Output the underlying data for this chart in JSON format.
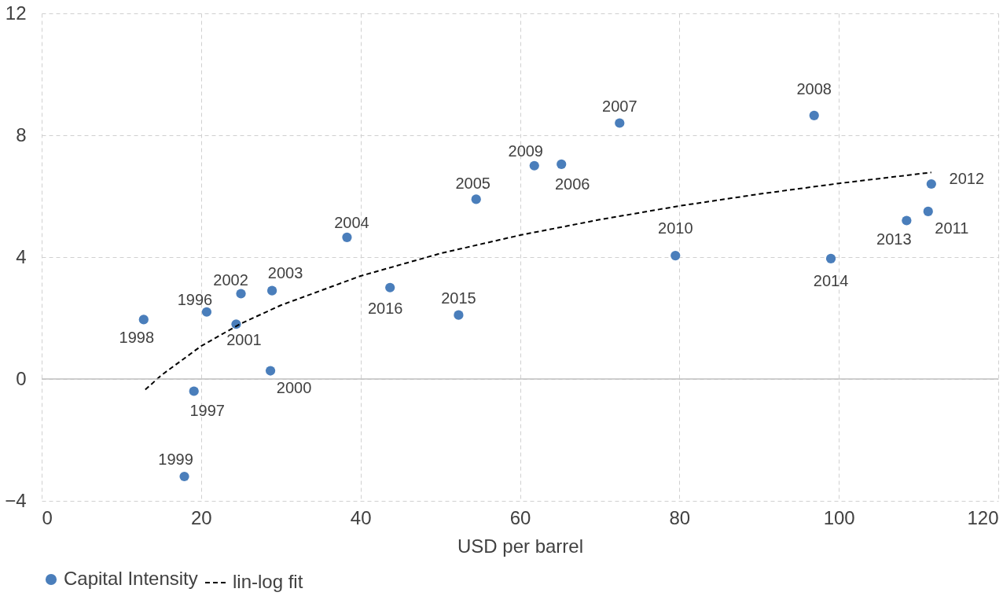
{
  "chart_data": {
    "type": "scatter",
    "xlabel": "USD per barrel",
    "xlim": [
      0,
      120
    ],
    "xticks": [
      0,
      20,
      40,
      60,
      80,
      100,
      120
    ],
    "ylim": [
      -4,
      12
    ],
    "yticks": [
      -4,
      0,
      4,
      8,
      12
    ],
    "grid": true,
    "legend": "bottom",
    "series": [
      {
        "name": "Capital Intensity",
        "color": "#4a7ebb",
        "marker": "circle",
        "x": [
          12.8,
          20.7,
          19.1,
          17.9,
          25.0,
          24.4,
          28.9,
          28.7,
          38.3,
          43.7,
          52.3,
          54.5,
          61.8,
          65.2,
          72.5,
          79.5,
          96.9,
          99.0,
          108.5,
          111.2,
          111.6
        ],
        "values": [
          1.95,
          2.2,
          -0.4,
          -3.2,
          2.8,
          1.8,
          2.9,
          0.27,
          4.65,
          3.0,
          2.1,
          5.9,
          7.0,
          7.05,
          8.4,
          4.05,
          8.65,
          3.95,
          5.2,
          5.5,
          6.4
        ]
      },
      {
        "name": "lin-log fit",
        "type": "line",
        "color": "#000000",
        "line_style": "dashed",
        "x": [
          13,
          15,
          20,
          25,
          30,
          40,
          50,
          60,
          70,
          80,
          90,
          100,
          111.6
        ],
        "values": [
          -0.35,
          0.12,
          1.08,
          1.82,
          2.42,
          3.38,
          4.12,
          4.72,
          5.23,
          5.68,
          6.07,
          6.42,
          6.78
        ]
      }
    ],
    "annotations": [
      {
        "text": "1998",
        "x": 12.8,
        "y": 1.95
      },
      {
        "text": "1996",
        "x": 20.7,
        "y": 2.2
      },
      {
        "text": "1997",
        "x": 19.1,
        "y": -0.4
      },
      {
        "text": "1999",
        "x": 17.9,
        "y": -3.2
      },
      {
        "text": "2002",
        "x": 25.0,
        "y": 2.8
      },
      {
        "text": "2001",
        "x": 24.4,
        "y": 1.8
      },
      {
        "text": "2003",
        "x": 28.9,
        "y": 2.9
      },
      {
        "text": "2000",
        "x": 28.7,
        "y": 0.27
      },
      {
        "text": "2004",
        "x": 38.3,
        "y": 4.65
      },
      {
        "text": "2016",
        "x": 43.7,
        "y": 3.0
      },
      {
        "text": "2015",
        "x": 52.3,
        "y": 2.1
      },
      {
        "text": "2005",
        "x": 54.5,
        "y": 5.9
      },
      {
        "text": "2009",
        "x": 61.8,
        "y": 7.0
      },
      {
        "text": "2006",
        "x": 65.2,
        "y": 7.05
      },
      {
        "text": "2007",
        "x": 72.5,
        "y": 8.4
      },
      {
        "text": "2010",
        "x": 79.5,
        "y": 4.05
      },
      {
        "text": "2008",
        "x": 96.9,
        "y": 8.65
      },
      {
        "text": "2014",
        "x": 99.0,
        "y": 3.95
      },
      {
        "text": "2013",
        "x": 108.5,
        "y": 5.2
      },
      {
        "text": "2011",
        "x": 111.2,
        "y": 5.5
      },
      {
        "text": "2012",
        "x": 111.6,
        "y": 6.4
      }
    ],
    "ref_lines": [
      {
        "axis": "y",
        "value": 0,
        "color": "#bfbfbf",
        "line_style": "solid"
      }
    ]
  }
}
